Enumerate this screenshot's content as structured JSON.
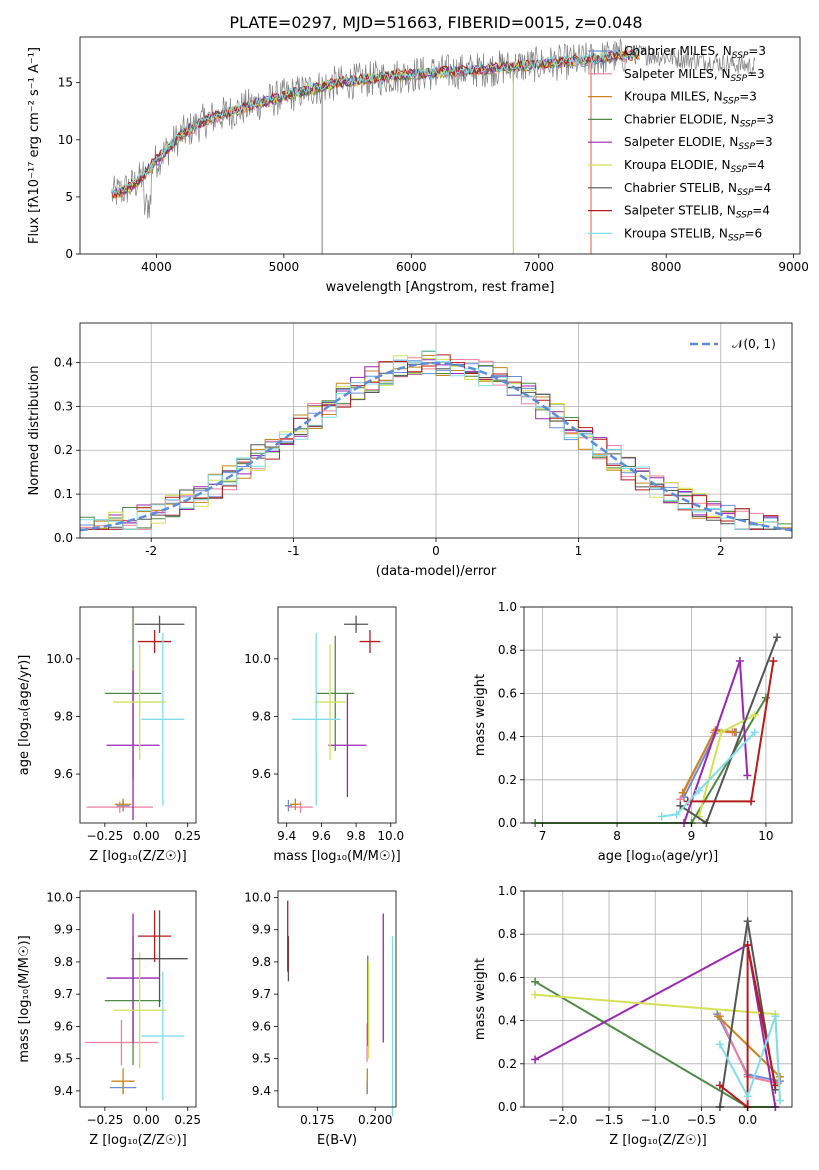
{
  "title": "PLATE=0297, MJD=51663, FIBERID=0015, z=0.048",
  "colors": {
    "Chabrier MILES": "#6a8fd8",
    "Salpeter MILES": "#f07fa0",
    "Kroupa MILES": "#c8861c",
    "Chabrier ELODIE": "#4f8a46",
    "Salpeter ELODIE": "#9b27b0",
    "Kroupa ELODIE": "#d4e157",
    "Chabrier STELIB": "#555555",
    "Salpeter STELIB": "#b71c1c",
    "Kroupa STELIB": "#80deea",
    "data": "#808080",
    "gaussian": "#5b8ddc"
  },
  "chart_data": [
    {
      "id": "spectrum",
      "type": "line",
      "xlabel": "wavelength [Angstrom, rest frame]",
      "ylabel": "Flux [fλ10⁻¹⁷ erg cm⁻² s⁻¹ A⁻¹]",
      "xlim": [
        3400,
        9050
      ],
      "ylim": [
        0,
        19
      ],
      "xticks": [
        4000,
        5000,
        6000,
        7000,
        8000,
        9000
      ],
      "yticks": [
        0,
        5,
        10,
        15
      ],
      "legend": "upper right",
      "grid": false,
      "legend_entries": [
        {
          "model": "Chabrier MILES",
          "imf": "Chabrier MILES, N",
          "sub": "SSP",
          "n": "=3"
        },
        {
          "model": "Salpeter MILES",
          "imf": "Salpeter MILES, N",
          "sub": "SSP",
          "n": "=3"
        },
        {
          "model": "Kroupa MILES",
          "imf": "Kroupa MILES, N",
          "sub": "SSP",
          "n": "=3"
        },
        {
          "model": "Chabrier ELODIE",
          "imf": "Chabrier ELODIE, N",
          "sub": "SSP",
          "n": "=3"
        },
        {
          "model": "Salpeter ELODIE",
          "imf": "Salpeter ELODIE, N",
          "sub": "SSP",
          "n": "=3"
        },
        {
          "model": "Kroupa ELODIE",
          "imf": "Kroupa ELODIE, N",
          "sub": "SSP",
          "n": "=4"
        },
        {
          "model": "Chabrier STELIB",
          "imf": "Chabrier STELIB, N",
          "sub": "SSP",
          "n": "=4"
        },
        {
          "model": "Salpeter STELIB",
          "imf": "Salpeter STELIB, N",
          "sub": "SSP",
          "n": "=4"
        },
        {
          "model": "Kroupa STELIB",
          "imf": "Kroupa STELIB, N",
          "sub": "SSP",
          "n": "=6"
        }
      ],
      "continuum_x": [
        3650,
        3750,
        3850,
        4000,
        4200,
        4400,
        4600,
        4800,
        5000,
        5200,
        5400,
        5600,
        5800,
        6000,
        6200,
        6400,
        6600,
        6800,
        7000,
        7200,
        7400,
        7600,
        7800
      ],
      "continuum_y": [
        5.2,
        5.6,
        6.3,
        8.2,
        10.5,
        11.8,
        12.5,
        13.2,
        13.8,
        14.4,
        14.9,
        15.2,
        15.5,
        15.7,
        15.9,
        16.0,
        16.2,
        16.4,
        16.6,
        16.8,
        17.0,
        17.3,
        17.5
      ],
      "data_range": [
        3650,
        8700
      ],
      "model_range": [
        3650,
        7800
      ]
    },
    {
      "id": "residual-histogram",
      "type": "step",
      "xlabel": "(data-model)/error",
      "ylabel": "Normed distribution",
      "xlim": [
        -2.5,
        2.5
      ],
      "ylim": [
        0,
        0.49
      ],
      "xticks": [
        -2,
        -1,
        0,
        1,
        2
      ],
      "yticks": [
        0.0,
        0.1,
        0.2,
        0.3,
        0.4
      ],
      "grid": true,
      "legend": "upper right",
      "gaussian_label": "𝒩(0, 1)",
      "bin_width": 0.1
    },
    {
      "id": "age-vs-Z",
      "type": "errorbar",
      "xlabel": "Z [log₁₀(Z/Z☉)]",
      "ylabel": "age  [log₁₀(age/yr)]",
      "xlim": [
        -0.4,
        0.3
      ],
      "ylim": [
        9.43,
        10.18
      ],
      "xticks": [
        -0.25,
        0.0,
        0.25
      ],
      "xticklabels": [
        "−0.25",
        "0.00",
        "0.25"
      ],
      "yticks": [
        9.6,
        9.8,
        10.0
      ],
      "points": [
        {
          "model": "Chabrier MILES",
          "x": -0.14,
          "xerr": 0.04,
          "y": 9.49,
          "yerr": 0.02
        },
        {
          "model": "Salpeter MILES",
          "x": -0.16,
          "xerr": 0.2,
          "y": 9.485,
          "yerr": 0.02
        },
        {
          "model": "Kroupa MILES",
          "x": -0.14,
          "xerr": 0.05,
          "y": 9.495,
          "yerr": 0.02
        },
        {
          "model": "Chabrier ELODIE",
          "x": -0.08,
          "xerr": 0.17,
          "y": 9.88,
          "yerr": 0.3
        },
        {
          "model": "Salpeter ELODIE",
          "x": -0.08,
          "xerr": 0.16,
          "y": 9.7,
          "yerr": 0.26
        },
        {
          "model": "Kroupa ELODIE",
          "x": -0.04,
          "xerr": 0.16,
          "y": 9.85,
          "yerr": 0.2
        },
        {
          "model": "Chabrier STELIB",
          "x": 0.08,
          "xerr": 0.15,
          "y": 10.12,
          "yerr": 0.03
        },
        {
          "model": "Salpeter STELIB",
          "x": 0.05,
          "xerr": 0.1,
          "y": 10.06,
          "yerr": 0.04
        },
        {
          "model": "Kroupa STELIB",
          "x": 0.1,
          "xerr": 0.13,
          "y": 9.79,
          "yerr": 0.3
        }
      ]
    },
    {
      "id": "age-vs-mass",
      "type": "errorbar",
      "xlabel": "mass [log₁₀(M/M☉)]",
      "ylabel": "",
      "xlim": [
        9.35,
        10.03
      ],
      "ylim": [
        9.43,
        10.18
      ],
      "xticks": [
        9.4,
        9.6,
        9.8,
        10.0
      ],
      "xticklabels": [
        "9.4",
        "9.6",
        "9.8",
        "10.0"
      ],
      "yticks": [
        9.6,
        9.8,
        10.0
      ],
      "points": [
        {
          "model": "Chabrier MILES",
          "x": 9.41,
          "xerr": 0.02,
          "y": 9.49,
          "yerr": 0.02
        },
        {
          "model": "Salpeter MILES",
          "x": 9.48,
          "xerr": 0.07,
          "y": 9.485,
          "yerr": 0.02
        },
        {
          "model": "Kroupa MILES",
          "x": 9.45,
          "xerr": 0.03,
          "y": 9.495,
          "yerr": 0.02
        },
        {
          "model": "Chabrier ELODIE",
          "x": 9.68,
          "xerr": 0.11,
          "y": 9.88,
          "yerr": 0.2
        },
        {
          "model": "Salpeter ELODIE",
          "x": 9.75,
          "xerr": 0.11,
          "y": 9.7,
          "yerr": 0.18
        },
        {
          "model": "Kroupa ELODIE",
          "x": 9.65,
          "xerr": 0.09,
          "y": 9.85,
          "yerr": 0.2
        },
        {
          "model": "Chabrier STELIB",
          "x": 9.8,
          "xerr": 0.07,
          "y": 10.12,
          "yerr": 0.03
        },
        {
          "model": "Salpeter STELIB",
          "x": 9.88,
          "xerr": 0.06,
          "y": 10.06,
          "yerr": 0.04
        },
        {
          "model": "Kroupa STELIB",
          "x": 9.57,
          "xerr": 0.14,
          "y": 9.79,
          "yerr": 0.3
        }
      ]
    },
    {
      "id": "mass-weight-vs-age",
      "type": "line",
      "xlabel": "age  [log₁₀(age/yr)]",
      "ylabel": "mass weight",
      "xlim": [
        6.75,
        10.35
      ],
      "ylim": [
        0,
        1
      ],
      "xticks": [
        7,
        8,
        9,
        10
      ],
      "yticks": [
        0.0,
        0.2,
        0.4,
        0.6,
        0.8,
        1.0
      ],
      "grid": true,
      "series": [
        {
          "model": "Chabrier MILES",
          "x": [
            8.9,
            9.35,
            9.6
          ],
          "y": [
            0.12,
            0.43,
            0.42
          ]
        },
        {
          "model": "Salpeter MILES",
          "x": [
            8.85,
            9.3,
            9.55
          ],
          "y": [
            0.11,
            0.42,
            0.42
          ]
        },
        {
          "model": "Kroupa MILES",
          "x": [
            8.88,
            9.32,
            9.58
          ],
          "y": [
            0.14,
            0.43,
            0.42
          ]
        },
        {
          "model": "Chabrier ELODIE",
          "x": [
            6.9,
            9.0,
            10.0
          ],
          "y": [
            0.0,
            0.0,
            0.58
          ]
        },
        {
          "model": "Salpeter ELODIE",
          "x": [
            8.9,
            9.65,
            9.75
          ],
          "y": [
            0.0,
            0.75,
            0.22
          ]
        },
        {
          "model": "Kroupa ELODIE",
          "x": [
            9.1,
            9.4,
            9.85
          ],
          "y": [
            0.03,
            0.42,
            0.5
          ]
        },
        {
          "model": "Chabrier STELIB",
          "x": [
            8.85,
            9.2,
            10.15
          ],
          "y": [
            0.08,
            0.0,
            0.86
          ]
        },
        {
          "model": "Salpeter STELIB",
          "x": [
            8.95,
            9.8,
            10.1
          ],
          "y": [
            0.1,
            0.1,
            0.75
          ]
        },
        {
          "model": "Kroupa STELIB",
          "x": [
            8.6,
            8.8,
            9.1,
            9.85
          ],
          "y": [
            0.03,
            0.04,
            0.15,
            0.42
          ]
        }
      ]
    },
    {
      "id": "mass-vs-Z",
      "type": "errorbar",
      "xlabel": "Z [log₁₀(Z/Z☉)]",
      "ylabel": "mass [log₁₀(M/M☉)]",
      "xlim": [
        -0.4,
        0.3
      ],
      "ylim": [
        9.35,
        10.02
      ],
      "xticks": [
        -0.25,
        0.0,
        0.25
      ],
      "xticklabels": [
        "−0.25",
        "0.00",
        "0.25"
      ],
      "yticks": [
        9.4,
        9.5,
        9.6,
        9.7,
        9.8,
        9.9,
        10.0
      ],
      "points": [
        {
          "model": "Chabrier MILES",
          "x": -0.14,
          "xerr": 0.08,
          "y": 9.41,
          "yerr": 0.02
        },
        {
          "model": "Salpeter MILES",
          "x": -0.15,
          "xerr": 0.22,
          "y": 9.55,
          "yerr": 0.07
        },
        {
          "model": "Kroupa MILES",
          "x": -0.14,
          "xerr": 0.07,
          "y": 9.43,
          "yerr": 0.04
        },
        {
          "model": "Chabrier ELODIE",
          "x": -0.08,
          "xerr": 0.17,
          "y": 9.68,
          "yerr": 0.2
        },
        {
          "model": "Salpeter ELODIE",
          "x": -0.08,
          "xerr": 0.16,
          "y": 9.75,
          "yerr": 0.2
        },
        {
          "model": "Kroupa ELODIE",
          "x": -0.04,
          "xerr": 0.16,
          "y": 9.65,
          "yerr": 0.18
        },
        {
          "model": "Chabrier STELIB",
          "x": 0.08,
          "xerr": 0.17,
          "y": 9.81,
          "yerr": 0.15
        },
        {
          "model": "Salpeter STELIB",
          "x": 0.05,
          "xerr": 0.1,
          "y": 9.88,
          "yerr": 0.08
        },
        {
          "model": "Kroupa STELIB",
          "x": 0.1,
          "xerr": 0.13,
          "y": 9.57,
          "yerr": 0.2
        }
      ]
    },
    {
      "id": "mass-vs-EBV",
      "type": "errorbar",
      "xlabel": "E(B-V)",
      "ylabel": "",
      "xlim": [
        0.158,
        0.209
      ],
      "ylim": [
        9.35,
        10.02
      ],
      "xticks": [
        0.175,
        0.2
      ],
      "xticklabels": [
        "0.175",
        "0.200"
      ],
      "yticks": [
        9.4,
        9.5,
        9.6,
        9.7,
        9.8,
        9.9,
        10.0
      ],
      "points": [
        {
          "model": "Chabrier MILES",
          "x": 0.1965,
          "y": 9.41,
          "yerr": 0.02
        },
        {
          "model": "Salpeter MILES",
          "x": 0.1965,
          "y": 9.55,
          "yerr": 0.06
        },
        {
          "model": "Kroupa MILES",
          "x": 0.1966,
          "y": 9.43,
          "yerr": 0.04
        },
        {
          "model": "Chabrier ELODIE",
          "x": 0.1968,
          "y": 9.68,
          "yerr": 0.14
        },
        {
          "model": "Salpeter ELODIE",
          "x": 0.2035,
          "y": 9.75,
          "yerr": 0.2
        },
        {
          "model": "Kroupa ELODIE",
          "x": 0.1972,
          "y": 9.65,
          "yerr": 0.15
        },
        {
          "model": "Chabrier STELIB",
          "x": 0.1625,
          "y": 9.81,
          "yerr": 0.07
        },
        {
          "model": "Salpeter STELIB",
          "x": 0.1622,
          "y": 9.88,
          "yerr": 0.11
        },
        {
          "model": "Kroupa STELIB",
          "x": 0.2075,
          "y": 9.6,
          "yerr": 0.28
        }
      ]
    },
    {
      "id": "mass-weight-vs-Z",
      "type": "line",
      "xlabel": "Z [log₁₀(Z/Z☉)]",
      "ylabel": "mass weight",
      "xlim": [
        -2.42,
        0.48
      ],
      "ylim": [
        0,
        1
      ],
      "xticks": [
        -2.0,
        -1.5,
        -1.0,
        -0.5,
        0.0
      ],
      "xticklabels": [
        "−2.0",
        "−1.5",
        "−1.0",
        "−0.5",
        "0.0"
      ],
      "yticks": [
        0.0,
        0.2,
        0.4,
        0.6,
        0.8,
        1.0
      ],
      "grid": true,
      "series": [
        {
          "model": "Chabrier MILES",
          "x": [
            -0.33,
            0.0,
            0.35
          ],
          "y": [
            0.43,
            0.15,
            0.12
          ]
        },
        {
          "model": "Salpeter MILES",
          "x": [
            -0.3,
            0.0,
            0.33
          ],
          "y": [
            0.42,
            0.14,
            0.11
          ]
        },
        {
          "model": "Kroupa MILES",
          "x": [
            -0.32,
            0.35
          ],
          "y": [
            0.42,
            0.14
          ]
        },
        {
          "model": "Chabrier ELODIE",
          "x": [
            -2.3,
            0.0,
            0.3
          ],
          "y": [
            0.58,
            0.0,
            0.0
          ]
        },
        {
          "model": "Salpeter ELODIE",
          "x": [
            -2.3,
            0.0,
            0.3
          ],
          "y": [
            0.22,
            0.75,
            0.0
          ]
        },
        {
          "model": "Kroupa ELODIE",
          "x": [
            -2.3,
            0.3,
            0.35
          ],
          "y": [
            0.52,
            0.43,
            0.03
          ]
        },
        {
          "model": "Chabrier STELIB",
          "x": [
            -0.3,
            0.0,
            0.3
          ],
          "y": [
            0.0,
            0.86,
            0.08
          ]
        },
        {
          "model": "Salpeter STELIB",
          "x": [
            -0.3,
            0.0,
            0.0,
            0.3
          ],
          "y": [
            0.1,
            0.0,
            0.75,
            0.1
          ]
        },
        {
          "model": "Kroupa STELIB",
          "x": [
            -0.3,
            0.0,
            0.3,
            0.35
          ],
          "y": [
            0.29,
            0.05,
            0.42,
            0.03
          ]
        }
      ]
    }
  ]
}
